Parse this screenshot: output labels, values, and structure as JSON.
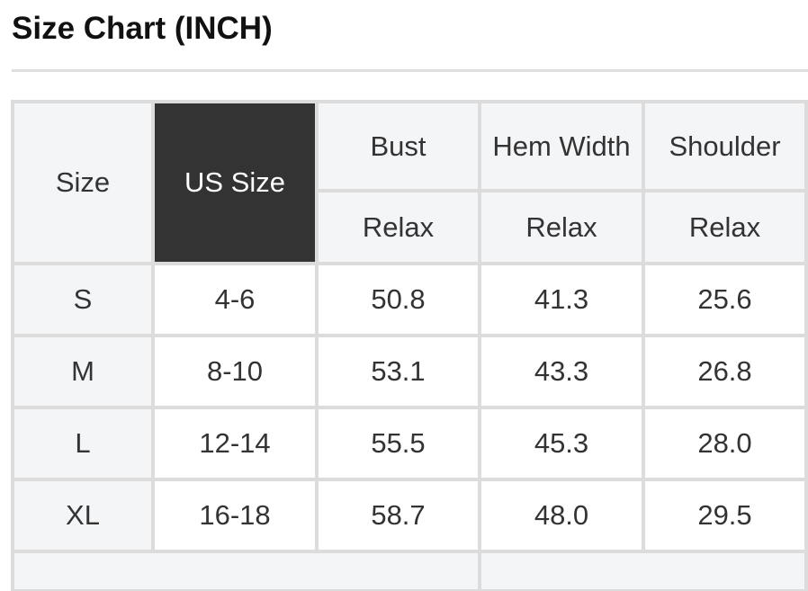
{
  "title": "Size Chart (INCH)",
  "table": {
    "headers": {
      "size": "Size",
      "us_size": "US Size",
      "columns": [
        "Bust",
        "Hem Width",
        "Shoulder"
      ],
      "sub": [
        "Relax",
        "Relax",
        "Relax"
      ]
    },
    "rows": [
      [
        "S",
        "4-6",
        "50.8",
        "41.3",
        "25.6"
      ],
      [
        "M",
        "8-10",
        "53.1",
        "43.3",
        "26.8"
      ],
      [
        "L",
        "12-14",
        "55.5",
        "45.3",
        "28.0"
      ],
      [
        "XL",
        "16-18",
        "58.7",
        "48.0",
        "29.5"
      ]
    ]
  },
  "colors": {
    "header_dark": "#333333",
    "header_light": "#f4f5f7",
    "border": "#dcdcdc"
  }
}
